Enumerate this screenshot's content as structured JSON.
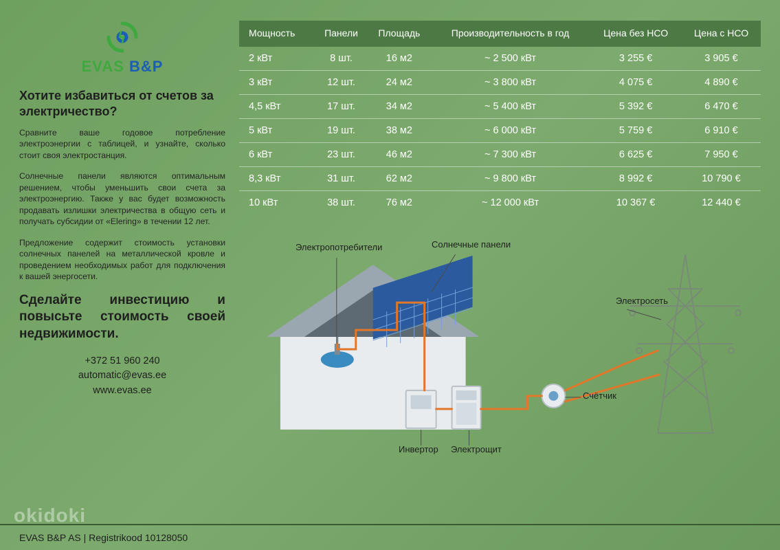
{
  "logo": {
    "evas": "EVAS",
    "bp": "B&P"
  },
  "headline": "Хотите избавиться от счетов за электричество?",
  "para1": "Сравните ваше годовое потребление электроэнергии с таблицей, и узнайте, сколько стоит своя электростанция.",
  "para2": "Солнечные панели являются оптимальным решением, чтобы уменьшить свои счета за электроэнергию. Также у вас будет возможность продавать излишки электричества в общую сеть и получать субсидии от «Elering» в течении 12 лет.",
  "para3": "Предложение содержит стоимость установки солнечных панелей на металлической кровле и проведением необходимых работ для подключения к вашей энергосети.",
  "cta": "Сделайте инвестицию и повысьте стоимость своей недвижимости.",
  "contact": {
    "phone": "+372 51 960 240",
    "email": "automatic@evas.ee",
    "web": "www.evas.ee"
  },
  "table": {
    "columns": [
      "Мощность",
      "Панели",
      "Площадь",
      "Производительность в год",
      "Цена без НСО",
      "Цена с НСО"
    ],
    "rows": [
      [
        "2 кВт",
        "8 шт.",
        "16 м2",
        "~ 2 500 кВт",
        "3 255 €",
        "3 905 €"
      ],
      [
        "3 кВт",
        "12 шт.",
        "24 м2",
        "~ 3 800 кВт",
        "4 075 €",
        "4 890 €"
      ],
      [
        "4,5 кВт",
        "17 шт.",
        "34 м2",
        "~ 5 400 кВт",
        "5 392 €",
        "6 470 €"
      ],
      [
        "5 кВт",
        "19 шт.",
        "38 м2",
        "~ 6 000 кВт",
        "5 759 €",
        "6 910 €"
      ],
      [
        "6 кВт",
        "23 шт.",
        "46 м2",
        "~ 7 300 кВт",
        "6 625 €",
        "7 950 €"
      ],
      [
        "8,3 кВт",
        "31 шт.",
        "62 м2",
        "~ 9 800 кВт",
        "8 992 €",
        "10 790 €"
      ],
      [
        "10 кВт",
        "38 шт.",
        "76 м2",
        "~ 12 000 кВт",
        "10 367 €",
        "12 440 €"
      ]
    ],
    "header_bg": "#4d7a44",
    "text_color": "#ffffff"
  },
  "diagram": {
    "labels": {
      "consumers": "Электропотребители",
      "panels": "Солнечные панели",
      "grid": "Электросеть",
      "meter": "Счётчик",
      "inverter": "Инвертор",
      "switchboard": "Электрощит"
    },
    "colors": {
      "house_fill": "#e8ecef",
      "roof_fill": "#9aa7b0",
      "panel_fill": "#2b5b9e",
      "panel_grid": "#6fa0d8",
      "wire": "#e2772a",
      "tower": "#7a8a78",
      "box_fill": "#e8ecef",
      "box_border": "#b8c0c6"
    }
  },
  "footer": "EVAS B&P AS | Registrikood  10128050",
  "watermark": "okidoki"
}
